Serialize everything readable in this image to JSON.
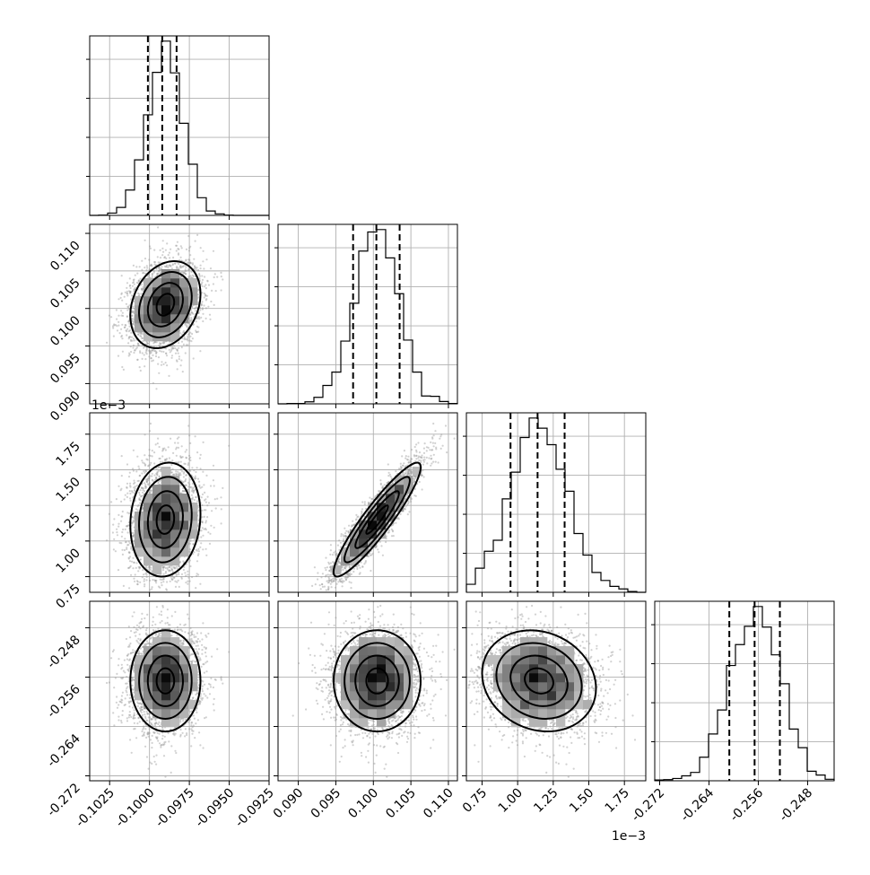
{
  "chart_data": {
    "type": "corner",
    "params": [
      {
        "id": "p0",
        "range": [
          -0.10375,
          -0.0925
        ],
        "ticks": [
          -0.1025,
          -0.1,
          -0.0975,
          -0.095,
          -0.0925
        ],
        "tick_labels": [
          "-0.1025",
          "-0.1000",
          "-0.0975",
          "-0.0950",
          "-0.0925"
        ],
        "mean": -0.099,
        "sd": 0.0011,
        "quantiles": [
          -0.1001,
          -0.0992,
          -0.0983
        ]
      },
      {
        "id": "p1",
        "range": [
          0.0873,
          0.1112
        ],
        "ticks": [
          0.09,
          0.095,
          0.1,
          0.105,
          0.11
        ],
        "tick_labels": [
          "0.090",
          "0.095",
          "0.100",
          "0.105",
          "0.110"
        ],
        "mean": 0.1005,
        "sd": 0.0029,
        "quantiles": [
          0.0973,
          0.1004,
          0.1035
        ]
      },
      {
        "id": "p2",
        "range": [
          0.00064,
          0.0019
        ],
        "ticks": [
          0.00075,
          0.001,
          0.00125,
          0.0015,
          0.00175
        ],
        "tick_labels": [
          "0.75",
          "1.00",
          "1.25",
          "1.50",
          "1.75"
        ],
        "mean": 0.00115,
        "sd": 0.0002,
        "quantiles": [
          0.00095,
          0.00114,
          0.00133
        ]
      },
      {
        "id": "p3",
        "range": [
          -0.2728,
          -0.2437
        ],
        "ticks": [
          -0.272,
          -0.264,
          -0.256,
          -0.248
        ],
        "tick_labels": [
          "-0.272",
          "-0.264",
          "-0.256",
          "-0.248"
        ],
        "mean": -0.2566,
        "sd": 0.0041,
        "quantiles": [
          -0.2607,
          -0.2566,
          -0.2525
        ]
      }
    ],
    "correlations": {
      "1_0": 0.25,
      "2_0": 0.1,
      "2_1": 0.92,
      "3_0": 0.0,
      "3_1": 0.0,
      "3_2": -0.15
    },
    "offset_text": [
      {
        "row": 2,
        "col": 0,
        "axis": "y",
        "text": "1e−3"
      },
      {
        "row": 3,
        "col": 2,
        "axis": "x",
        "text": "1e−3"
      }
    ]
  }
}
